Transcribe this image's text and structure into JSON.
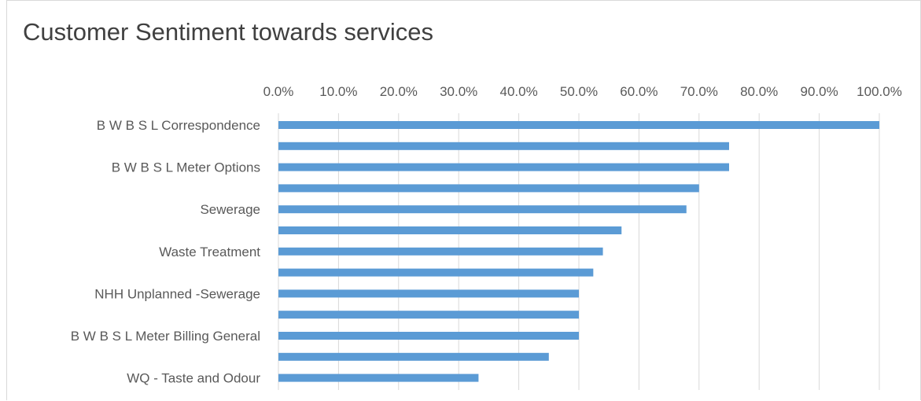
{
  "chart_data": {
    "type": "bar",
    "orientation": "horizontal",
    "title": "Customer Sentiment towards services",
    "xlabel": "",
    "ylabel": "",
    "xlim": [
      0,
      100
    ],
    "x_ticks": [
      "0.0%",
      "10.0%",
      "20.0%",
      "30.0%",
      "40.0%",
      "50.0%",
      "60.0%",
      "70.0%",
      "80.0%",
      "90.0%",
      "100.0%"
    ],
    "x_axis_position": "top",
    "grid": true,
    "legend": "none",
    "bar_color": "#5b9bd5",
    "categories": [
      "B W B S L Correspondence",
      "",
      "B W B S L Meter Options",
      "",
      "Sewerage",
      "",
      "Waste Treatment",
      "",
      "NHH Unplanned -Sewerage",
      "",
      "B W B S L Meter Billing General",
      "",
      "WQ - Taste and Odour"
    ],
    "values": [
      100.0,
      75.0,
      75.0,
      70.0,
      67.9,
      57.1,
      54.0,
      52.4,
      50.0,
      50.0,
      50.0,
      45.0,
      33.3
    ]
  }
}
